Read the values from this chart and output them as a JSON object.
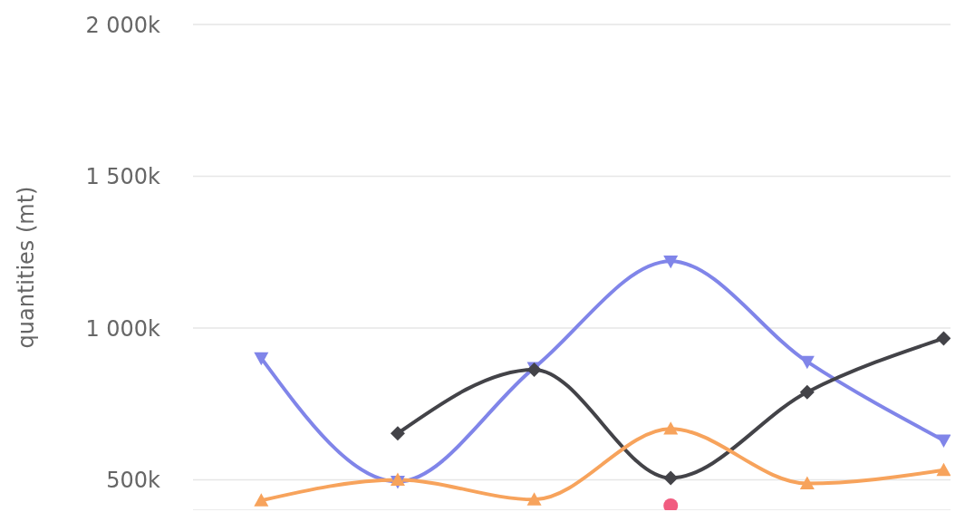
{
  "chart_data": {
    "type": "line",
    "ylabel": "quantities (mt)",
    "categories": [
      null,
      null,
      null,
      null,
      null,
      null
    ],
    "series": [
      {
        "color": "#8085e9",
        "marker": "triangle-down",
        "values": [
          901000,
          494000,
          869000,
          1220000,
          889000,
          630000
        ]
      },
      {
        "color": "#434348",
        "marker": "diamond",
        "values": [
          null,
          653000,
          863000,
          506000,
          789000,
          966000
        ]
      },
      {
        "color": "#f7a35c",
        "marker": "triangle",
        "values": [
          432000,
          500000,
          435000,
          668000,
          488000,
          532000
        ]
      },
      {
        "color": "#f15c80",
        "marker": "circle",
        "values": [
          null,
          null,
          null,
          415000,
          null,
          null
        ]
      }
    ],
    "ylim": [
      400000,
      2000000
    ],
    "yticks": [
      {
        "value": 500000,
        "label": "500k"
      },
      {
        "value": 1000000,
        "label": "1 000k"
      },
      {
        "value": 1500000,
        "label": "1 500k"
      },
      {
        "value": 2000000,
        "label": "2 000k"
      }
    ],
    "grid": "y",
    "legend": false,
    "tick_labels": "y",
    "line_style": "solid"
  }
}
